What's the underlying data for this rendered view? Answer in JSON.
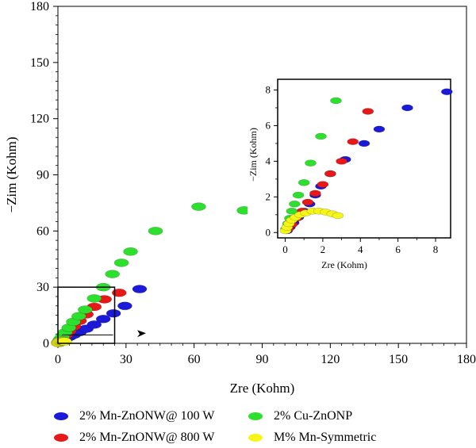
{
  "colors": {
    "s1": "#1a1ad8",
    "s2": "#e81818",
    "s3": "#2ee02e",
    "s4": "#f5f51a"
  },
  "chart_data": [
    {
      "type": "scatter",
      "xlabel": "Zre (Kohm)",
      "ylabel": "−Zim (Kohm)",
      "xlim": [
        0,
        180
      ],
      "ylim": [
        0,
        180
      ],
      "xticks": [
        0,
        30,
        60,
        90,
        120,
        150,
        180
      ],
      "yticks": [
        0,
        30,
        60,
        90,
        120,
        150,
        180
      ],
      "xtick_labels": [
        "0",
        "30",
        "60",
        "90",
        "120",
        "150",
        "180"
      ],
      "ytick_labels": [
        "0",
        "30",
        "60",
        "90",
        "120",
        "150",
        "180"
      ],
      "grid": false,
      "legend_position": "bottom",
      "series": [
        {
          "name": "2% Mn-ZnONW@ 100 W",
          "color": "#1a1ad8",
          "points": [
            [
              0.3,
              0.2
            ],
            [
              0.8,
              0.6
            ],
            [
              1.5,
              1.1
            ],
            [
              2.6,
              1.8
            ],
            [
              3.7,
              2.6
            ],
            [
              5.1,
              3.5
            ],
            [
              7,
              4.6
            ],
            [
              9.5,
              6
            ],
            [
              12.5,
              7.8
            ],
            [
              16,
              10
            ],
            [
              20,
              13
            ],
            [
              24.5,
              16
            ],
            [
              29.5,
              20
            ],
            [
              36,
              29
            ]
          ]
        },
        {
          "name": "2% Mn-ZnONW@ 800 W",
          "color": "#e81818",
          "points": [
            [
              0.3,
              0.3
            ],
            [
              0.8,
              0.9
            ],
            [
              1.5,
              1.8
            ],
            [
              2.4,
              3
            ],
            [
              3.5,
              4.5
            ],
            [
              5,
              6.6
            ],
            [
              7,
              9
            ],
            [
              9.5,
              12
            ],
            [
              12.5,
              15.5
            ],
            [
              16,
              19.5
            ],
            [
              20.5,
              23.5
            ],
            [
              27,
              27
            ]
          ]
        },
        {
          "name": "2% Cu-ZnONP",
          "color": "#2ee02e",
          "points": [
            [
              0.2,
              0.3
            ],
            [
              0.5,
              1
            ],
            [
              1.1,
              2.2
            ],
            [
              2,
              3.7
            ],
            [
              3.2,
              5.8
            ],
            [
              4.8,
              8.3
            ],
            [
              6.8,
              11.5
            ],
            [
              9.2,
              14.5
            ],
            [
              12,
              18
            ],
            [
              16,
              24
            ],
            [
              20,
              30
            ],
            [
              24,
              37
            ],
            [
              28,
              43
            ],
            [
              32,
              49
            ],
            [
              43,
              60
            ],
            [
              62,
              73
            ],
            [
              82,
              71
            ]
          ]
        },
        {
          "name": "M% Mn-Symmetric",
          "color": "#f5f51a",
          "points": [
            [
              0.1,
              0.1
            ],
            [
              0.3,
              0.4
            ],
            [
              0.5,
              0.7
            ],
            [
              0.8,
              1
            ],
            [
              1.1,
              1.2
            ],
            [
              1.5,
              1.3
            ],
            [
              1.9,
              1.3
            ],
            [
              2.3,
              1.2
            ],
            [
              2.6,
              1.1
            ],
            [
              2.9,
              1
            ]
          ]
        }
      ],
      "annotations": [
        {
          "type": "box",
          "x": [
            0,
            25
          ],
          "y": [
            0,
            30
          ]
        }
      ]
    },
    {
      "type": "scatter",
      "xlabel": "Zre (Kohm)",
      "ylabel": "−Zim (Kohm)",
      "xlim": [
        -0.4,
        8.8
      ],
      "ylim": [
        -0.3,
        8.6
      ],
      "xticks": [
        0,
        2,
        4,
        6,
        8
      ],
      "yticks": [
        0,
        2,
        4,
        6,
        8
      ],
      "xtick_labels": [
        "0",
        "2",
        "4",
        "6",
        "8"
      ],
      "ytick_labels": [
        "0",
        "2",
        "4",
        "6",
        "8"
      ],
      "grid": false,
      "series": [
        {
          "name": "2% Mn-ZnONW@ 100 W",
          "color": "#1a1ad8",
          "points": [
            [
              0.1,
              0.1
            ],
            [
              0.25,
              0.3
            ],
            [
              0.45,
              0.55
            ],
            [
              0.7,
              0.85
            ],
            [
              1,
              1.2
            ],
            [
              1.3,
              1.6
            ],
            [
              1.6,
              2.1
            ],
            [
              1.9,
              2.6
            ],
            [
              2.4,
              3.3
            ],
            [
              3.2,
              4.1
            ],
            [
              4.2,
              5
            ],
            [
              5,
              5.8
            ],
            [
              6.5,
              7
            ],
            [
              8.6,
              7.9
            ]
          ]
        },
        {
          "name": "2% Mn-ZnONW@ 800 W",
          "color": "#e81818",
          "points": [
            [
              0.15,
              0.2
            ],
            [
              0.35,
              0.45
            ],
            [
              0.6,
              0.8
            ],
            [
              0.9,
              1.2
            ],
            [
              1.2,
              1.7
            ],
            [
              1.6,
              2.2
            ],
            [
              2,
              2.7
            ],
            [
              2.4,
              3.3
            ],
            [
              3,
              4
            ],
            [
              3.6,
              5.1
            ],
            [
              4.4,
              6.8
            ]
          ]
        },
        {
          "name": "2% Cu-ZnONP",
          "color": "#2ee02e",
          "points": [
            [
              0.05,
              0.2
            ],
            [
              0.15,
              0.5
            ],
            [
              0.25,
              0.8
            ],
            [
              0.35,
              1.2
            ],
            [
              0.5,
              1.6
            ],
            [
              0.7,
              2.1
            ],
            [
              1,
              2.8
            ],
            [
              1.35,
              3.9
            ],
            [
              1.9,
              5.4
            ],
            [
              2.7,
              7.4
            ]
          ]
        },
        {
          "name": "M% Mn-Symmetric",
          "color": "#f5f51a",
          "points": [
            [
              0.02,
              0.1
            ],
            [
              0.1,
              0.3
            ],
            [
              0.2,
              0.5
            ],
            [
              0.35,
              0.7
            ],
            [
              0.55,
              0.85
            ],
            [
              0.8,
              1
            ],
            [
              1.1,
              1.1
            ],
            [
              1.45,
              1.2
            ],
            [
              1.8,
              1.2
            ],
            [
              2.15,
              1.15
            ],
            [
              2.5,
              1.05
            ],
            [
              2.8,
              0.95
            ]
          ]
        }
      ]
    }
  ]
}
